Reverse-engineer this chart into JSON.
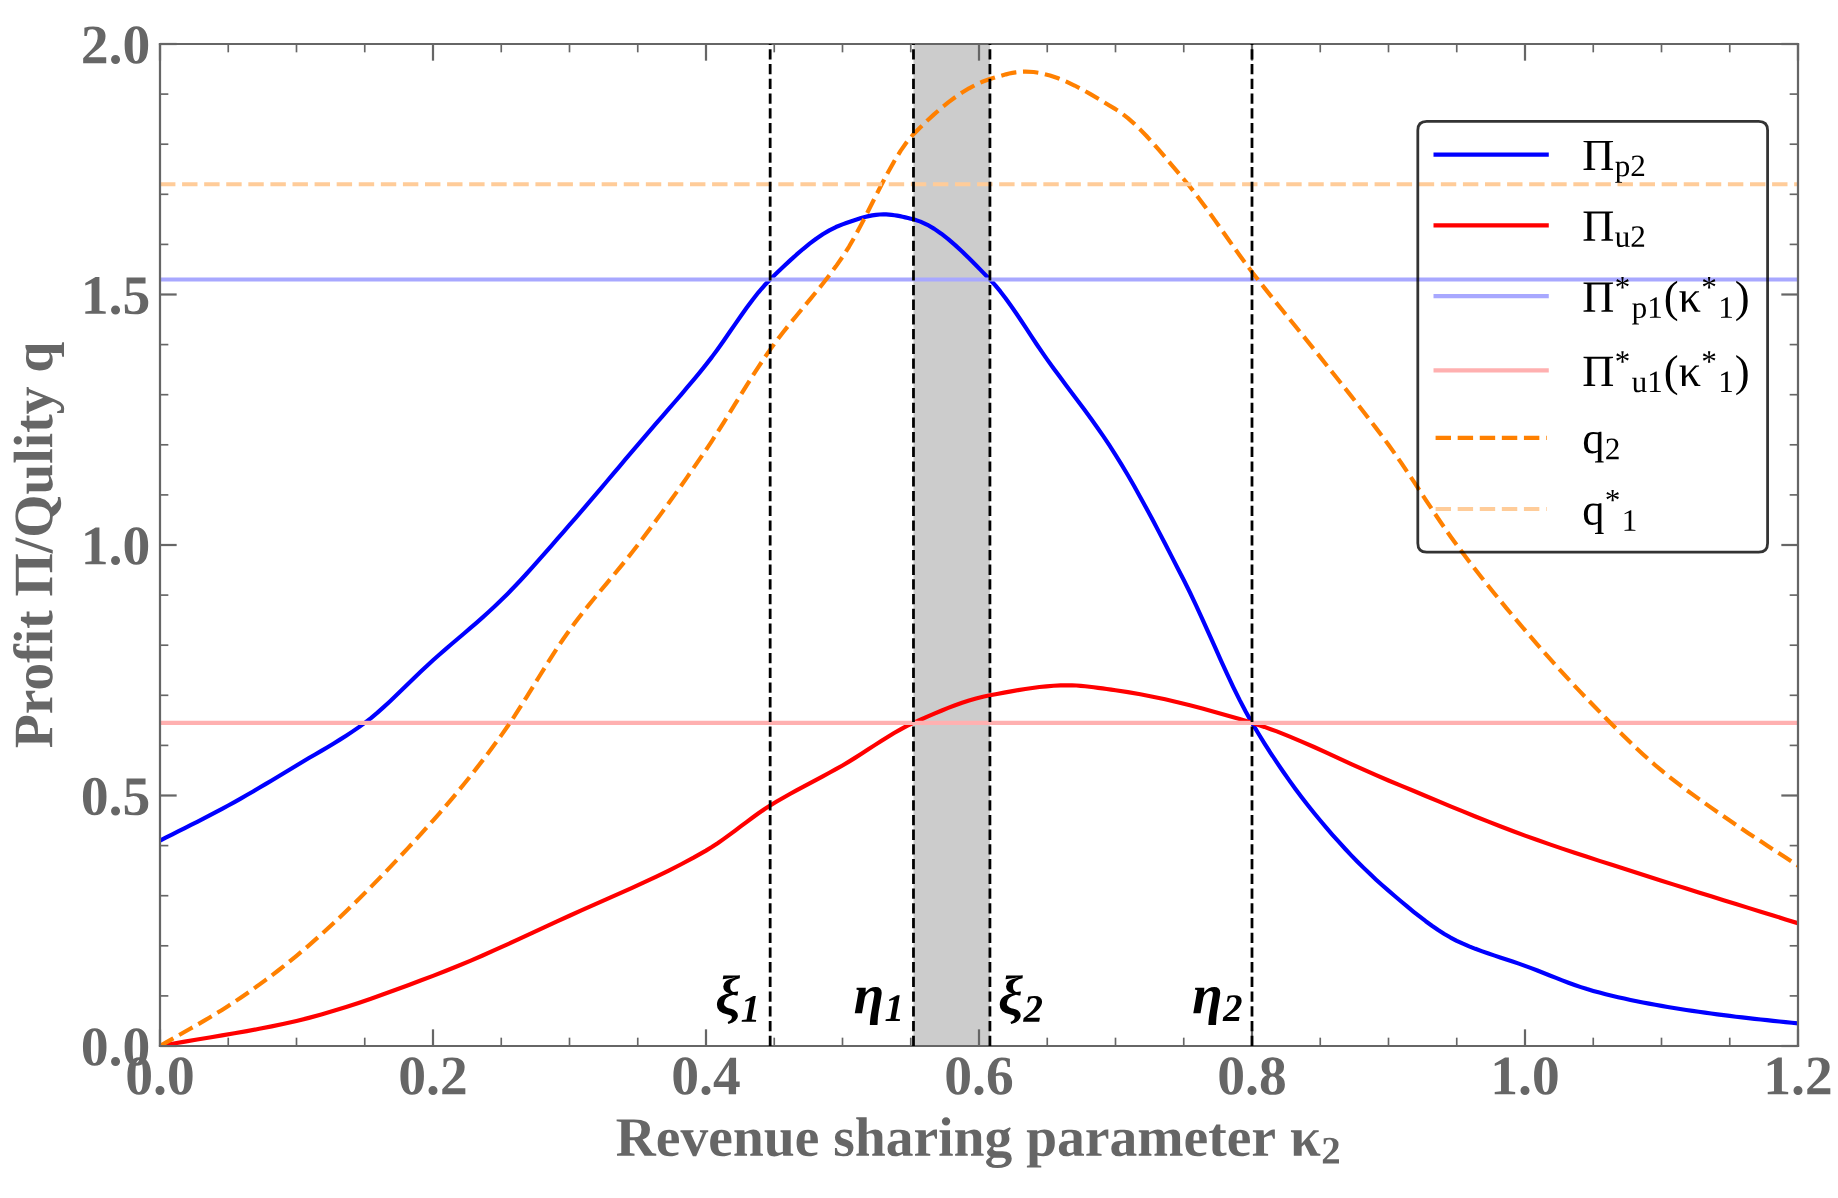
{
  "chart_data": {
    "type": "line",
    "xlabel": "Revenue sharing parameter κ$_{2}$",
    "ylabel": "Profit Π/Qulity q",
    "xlim": [
      0,
      1.2
    ],
    "ylim": [
      0,
      2.0
    ],
    "xticks": [
      {
        "value": 0,
        "label": "0.0"
      },
      0.2,
      0.4,
      0.6,
      0.8,
      {
        "value": 1,
        "label": "1.0"
      },
      1.2
    ],
    "yticks": [
      {
        "value": 0,
        "label": "0.0"
      },
      0.5,
      {
        "value": 1,
        "label": "1.0"
      },
      1.5,
      {
        "value": 2,
        "label": "2.0"
      }
    ],
    "grid": false,
    "legend": "top right",
    "series": [
      {
        "name": "Π$_{p2}$",
        "color": "#0000ff",
        "line_style": "solid",
        "x": [
          0,
          0.05,
          0.1,
          0.15,
          0.2,
          0.25,
          0.3,
          0.35,
          0.4,
          0.447,
          0.5,
          0.53,
          0.552,
          0.608,
          0.65,
          0.7,
          0.75,
          0.8,
          0.85,
          0.9,
          0.95,
          1.0,
          1.05,
          1.1,
          1.15,
          1.2
        ],
        "values": [
          0.41,
          0.48,
          0.56,
          0.645,
          0.77,
          0.89,
          1.04,
          1.2,
          1.36,
          1.53,
          1.64,
          1.66,
          1.65,
          1.53,
          1.37,
          1.18,
          0.93,
          0.645,
          0.45,
          0.31,
          0.21,
          0.16,
          0.11,
          0.08,
          0.06,
          0.045
        ]
      },
      {
        "name": "Π$_{u2}$",
        "color": "#ff0000",
        "line_style": "solid",
        "x": [
          0,
          0.1,
          0.2,
          0.3,
          0.4,
          0.447,
          0.5,
          0.552,
          0.608,
          0.665,
          0.7,
          0.8,
          0.9,
          1.0,
          1.1,
          1.2
        ],
        "values": [
          0,
          0.05,
          0.14,
          0.26,
          0.39,
          0.48,
          0.56,
          0.645,
          0.7,
          0.72,
          0.71,
          0.645,
          0.53,
          0.42,
          0.33,
          0.245
        ]
      },
      {
        "name": "Π$^{*}$$_{p1}$(κ$^{*}$$_{1}$)",
        "color": "#a8a8ff",
        "line_style": "solid",
        "x": [
          0,
          1.2
        ],
        "values": [
          1.53,
          1.53
        ]
      },
      {
        "name": "Π$^{*}$$_{u1}$(κ$^{*}$$_{1}$)",
        "color": "#ffb0b0",
        "line_style": "solid",
        "x": [
          0,
          1.2
        ],
        "values": [
          0.645,
          0.645
        ]
      },
      {
        "name": "q$_{2}$",
        "color": "#ff8000",
        "line_style": "dashed",
        "x": [
          0,
          0.05,
          0.1,
          0.2,
          0.25,
          0.3,
          0.35,
          0.4,
          0.447,
          0.5,
          0.552,
          0.608,
          0.634,
          0.7,
          0.75,
          0.8,
          0.85,
          0.9,
          0.95,
          1.0,
          1.05,
          1.1,
          1.15,
          1.2
        ],
        "values": [
          0,
          0.08,
          0.18,
          0.45,
          0.62,
          0.83,
          1.0,
          1.19,
          1.39,
          1.575,
          1.82,
          1.93,
          1.945,
          1.87,
          1.73,
          1.545,
          1.375,
          1.2,
          1.0,
          0.83,
          0.68,
          0.55,
          0.45,
          0.36
        ]
      },
      {
        "name": "q$^{*}$$_{1}$",
        "color": "#ffcc99",
        "line_style": "dashed",
        "x": [
          0,
          1.2
        ],
        "values": [
          1.72,
          1.72
        ]
      }
    ],
    "ref_lines": [
      {
        "axis": "x",
        "value": 0.447,
        "label": "ξ$_{1}$",
        "color": "#000000",
        "line_style": "dashed"
      },
      {
        "axis": "x",
        "value": 0.552,
        "label": "η$_{1}$",
        "color": "#000000",
        "line_style": "dashed"
      },
      {
        "axis": "x",
        "value": 0.608,
        "label": "ξ$_{2}$",
        "color": "#000000",
        "line_style": "dashed"
      },
      {
        "axis": "x",
        "value": 0.8,
        "label": "η$_{2}$",
        "color": "#000000",
        "line_style": "dashed"
      }
    ],
    "bands": [
      {
        "axis": "x",
        "from": 0.552,
        "to": 0.608,
        "color": "#cccccc"
      }
    ]
  }
}
